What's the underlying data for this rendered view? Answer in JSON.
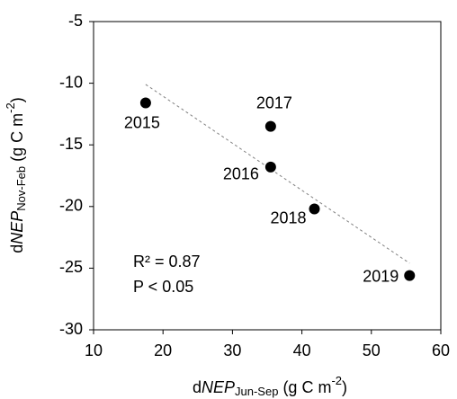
{
  "chart_data": {
    "type": "scatter",
    "x_label": [
      "d",
      "NEP",
      "Jun-Sep",
      " (g C m",
      "-2",
      ")"
    ],
    "y_label": [
      "d",
      "NEP",
      "Nov-Feb",
      " (g C m",
      "-2",
      ")"
    ],
    "x": [
      17.5,
      35.5,
      35.5,
      41.8,
      55.5
    ],
    "values": [
      -11.6,
      -16.8,
      -13.5,
      -20.2,
      -25.6
    ],
    "point_labels": [
      "2015",
      "2016",
      "2017",
      "2018",
      "2019"
    ],
    "color": "#000000",
    "trendline": {
      "x": [
        17.5,
        55.5
      ],
      "y": [
        -10.1,
        -24.6
      ],
      "color": "#808080"
    },
    "annotations": [
      "R² = 0.87",
      "P < 0.05"
    ],
    "xlim": [
      10,
      60
    ],
    "xticks": [
      10,
      20,
      30,
      40,
      50,
      60
    ],
    "ylim": [
      -30,
      -5
    ],
    "yticks": [
      -30,
      -25,
      -20,
      -15,
      -10,
      -5
    ]
  }
}
